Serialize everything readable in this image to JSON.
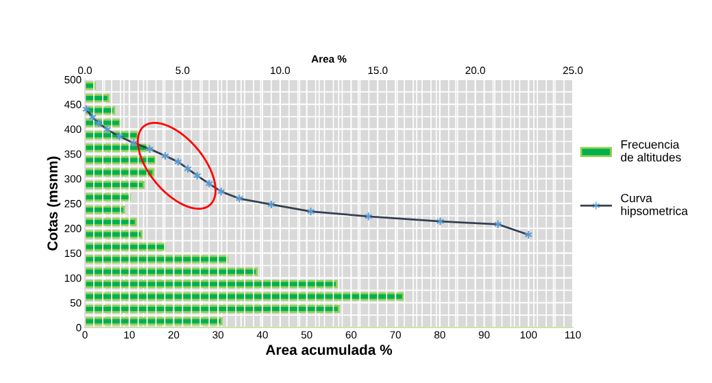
{
  "chart_data": [
    {
      "type": "bar",
      "orientation": "horizontal",
      "xlabel": "Area %",
      "tick_labels": "x",
      "legend": "right",
      "grid": true,
      "xlim": [
        0,
        25
      ],
      "xticks": [
        {
          "value": 0,
          "label": "0.0"
        },
        {
          "value": 5,
          "label": "5.0"
        },
        {
          "value": 10,
          "label": "10.0"
        },
        {
          "value": 15,
          "label": "15.0"
        },
        {
          "value": 20,
          "label": "20.0"
        },
        {
          "value": 25,
          "label": "25.0"
        }
      ],
      "categories": [
        null,
        null,
        null,
        null,
        null,
        null,
        null,
        null,
        null,
        null,
        null,
        null,
        null,
        null,
        null,
        null,
        null,
        null,
        null,
        null
      ],
      "series": [
        {
          "name": "Frecuencia de altitudes",
          "color": "#00b050",
          "values": [
            0.5,
            1.2,
            1.5,
            1.8,
            2.7,
            3.2,
            3.6,
            3.5,
            3.0,
            2.3,
            2.0,
            2.6,
            2.9,
            4.1,
            7.3,
            8.8,
            12.9,
            16.3,
            13.0,
            7.0
          ]
        }
      ]
    },
    {
      "type": "line",
      "xlabel": "Area acumulada %",
      "ylabel": "Cotas (msnm)",
      "legend": "right",
      "grid": true,
      "marker": "cross",
      "line_style": "solid",
      "xlim": [
        0,
        110
      ],
      "xticks": [
        0,
        10,
        20,
        30,
        40,
        50,
        60,
        70,
        80,
        90,
        100,
        110
      ],
      "ylim": [
        0,
        500
      ],
      "yticks": [
        0,
        50,
        100,
        150,
        200,
        250,
        300,
        350,
        400,
        450,
        500
      ],
      "series": [
        {
          "name": "Curva hipsometrica",
          "color": "#5b9bd5",
          "x": [
            0.3,
            1.7,
            3.1,
            5.0,
            7.8,
            11.0,
            14.6,
            18.1,
            21.0,
            23.2,
            25.3,
            28.0,
            30.7,
            34.8,
            42.0,
            50.9,
            63.9,
            80.1,
            93.1,
            100.0
          ],
          "values": [
            440,
            424,
            412,
            399,
            385,
            372,
            360,
            346,
            334,
            320,
            306,
            290,
            274,
            260,
            248,
            234,
            224,
            214,
            208,
            187
          ]
        }
      ]
    }
  ]
}
